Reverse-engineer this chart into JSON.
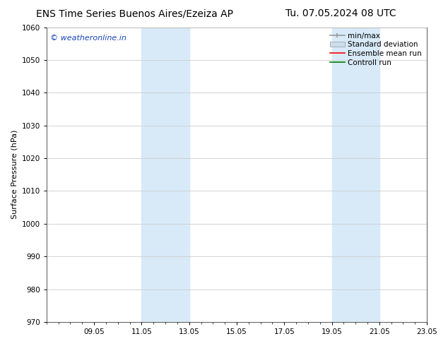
{
  "title_left": "ENS Time Series Buenos Aires/Ezeiza AP",
  "title_right": "Tu. 07.05.2024 08 UTC",
  "ylabel": "Surface Pressure (hPa)",
  "ylim": [
    970,
    1060
  ],
  "yticks": [
    970,
    980,
    990,
    1000,
    1010,
    1020,
    1030,
    1040,
    1050,
    1060
  ],
  "xtick_labels": [
    "09.05",
    "11.05",
    "13.05",
    "15.05",
    "17.05",
    "19.05",
    "21.05",
    "23.05"
  ],
  "xtick_positions": [
    2,
    4,
    6,
    8,
    10,
    12,
    14,
    16
  ],
  "xlim": [
    0,
    16
  ],
  "shaded_bands": [
    {
      "x_start": 4.0,
      "x_end": 6.0
    },
    {
      "x_start": 12.0,
      "x_end": 13.25
    },
    {
      "x_start": 13.25,
      "x_end": 14.0
    }
  ],
  "shade_colors": [
    "#daeaf8",
    "#daeaf8",
    "#daeaf8"
  ],
  "watermark_text": "© weatheronline.in",
  "watermark_color": "#1a44bb",
  "legend_entries": [
    {
      "label": "min/max",
      "color": "#999999",
      "lw": 1.2,
      "style": "minmax"
    },
    {
      "label": "Standard deviation",
      "color": "#ccdded",
      "lw": 6,
      "style": "band"
    },
    {
      "label": "Ensemble mean run",
      "color": "red",
      "lw": 1.2,
      "style": "line"
    },
    {
      "label": "Controll run",
      "color": "green",
      "lw": 1.2,
      "style": "line"
    }
  ],
  "background_color": "#ffffff",
  "grid_color": "#cccccc",
  "title_fontsize": 10,
  "watermark_fontsize": 8,
  "axis_label_fontsize": 8,
  "tick_fontsize": 7.5,
  "legend_fontsize": 7.5
}
